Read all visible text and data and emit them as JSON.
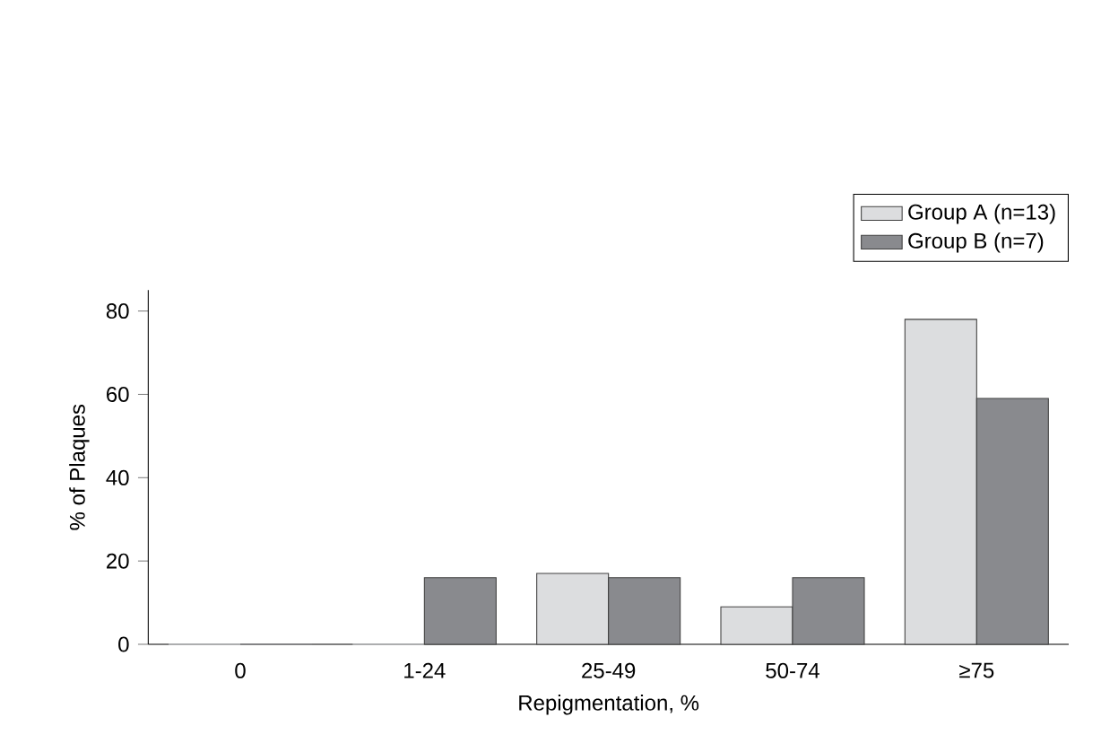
{
  "chart_data": {
    "type": "bar",
    "xlabel": "Repigmentation, %",
    "ylabel": "% of Plaques",
    "categories": [
      "0",
      "1-24",
      "25-49",
      "50-74",
      "≥75"
    ],
    "series": [
      {
        "name": "Group A (n=13)",
        "color": "#dcdddf",
        "values": [
          0,
          0,
          17,
          9,
          78
        ]
      },
      {
        "name": "Group B (n=7)",
        "color": "#898a8e",
        "values": [
          0,
          16,
          16,
          16,
          59
        ]
      }
    ],
    "ylim": [
      0,
      85
    ],
    "yticks": [
      0,
      20,
      40,
      60,
      80
    ],
    "legend": "top right",
    "grid": false
  }
}
